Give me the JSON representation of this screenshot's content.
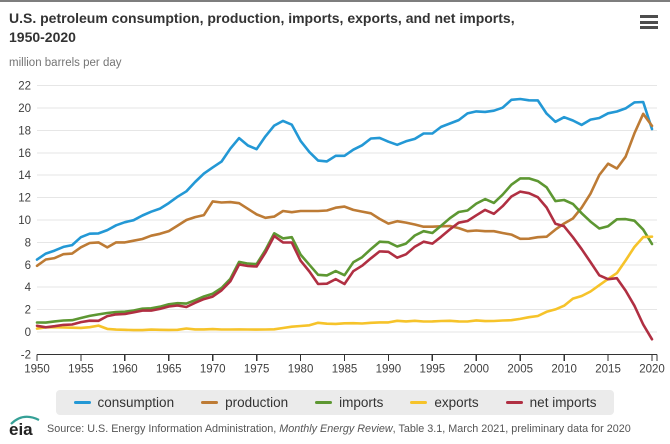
{
  "header": {
    "title": "U.S. petroleum consumption, production, imports, exports, and net imports,\n1950-2020",
    "menu_icon": "hamburger-icon"
  },
  "chart_data": {
    "type": "line",
    "title": "U.S. petroleum consumption, production, imports, exports, and net imports, 1950-2020",
    "units": "million barrels per day",
    "xlabel": "",
    "ylabel": "million barrels per day",
    "x_start": 1950,
    "x_end": 2020,
    "x_step": 1,
    "x_tick_interval": 5,
    "ylim": [
      -2,
      22
    ],
    "y_tick_interval": 2,
    "grid": true,
    "legend_position": "bottom",
    "colors": {
      "grid": "#e6e6e6",
      "axis": "#333333",
      "axis_label": "#404040"
    },
    "series": [
      {
        "name": "consumption",
        "color": "#2398d5",
        "values": [
          6.46,
          7.0,
          7.27,
          7.6,
          7.76,
          8.46,
          8.78,
          8.8,
          9.1,
          9.53,
          9.8,
          9.98,
          10.4,
          10.74,
          11.02,
          11.51,
          12.08,
          12.56,
          13.39,
          14.14,
          14.7,
          15.21,
          16.37,
          17.31,
          16.65,
          16.32,
          17.46,
          18.43,
          18.85,
          18.51,
          17.06,
          16.06,
          15.3,
          15.23,
          15.73,
          15.73,
          16.28,
          16.67,
          17.28,
          17.33,
          16.99,
          16.71,
          17.03,
          17.24,
          17.72,
          17.72,
          18.31,
          18.62,
          18.92,
          19.52,
          19.7,
          19.65,
          19.76,
          20.03,
          20.73,
          20.8,
          20.69,
          20.68,
          19.5,
          18.77,
          19.18,
          18.88,
          18.49,
          18.96,
          19.11,
          19.53,
          19.69,
          19.96,
          20.5,
          20.54,
          18.12
        ]
      },
      {
        "name": "production",
        "color": "#bd7b35",
        "values": [
          5.91,
          6.47,
          6.6,
          6.95,
          7.0,
          7.56,
          7.95,
          8.0,
          7.55,
          8.0,
          8.0,
          8.15,
          8.3,
          8.6,
          8.77,
          9.01,
          9.5,
          10.0,
          10.26,
          10.44,
          11.66,
          11.56,
          11.6,
          11.5,
          11.0,
          10.5,
          10.2,
          10.3,
          10.8,
          10.7,
          10.8,
          10.8,
          10.8,
          10.85,
          11.1,
          11.2,
          10.9,
          10.75,
          10.6,
          10.1,
          9.68,
          9.89,
          9.77,
          9.6,
          9.4,
          9.4,
          9.44,
          9.46,
          9.28,
          9.0,
          9.06,
          9.0,
          9.0,
          8.84,
          8.7,
          8.32,
          8.33,
          8.46,
          8.51,
          9.14,
          9.69,
          10.13,
          11.11,
          12.35,
          14.02,
          15.03,
          14.6,
          15.65,
          17.73,
          19.48,
          18.4
        ]
      },
      {
        "name": "imports",
        "color": "#5d9732",
        "values": [
          0.85,
          0.84,
          0.95,
          1.03,
          1.05,
          1.25,
          1.44,
          1.57,
          1.7,
          1.78,
          1.81,
          1.92,
          2.08,
          2.12,
          2.26,
          2.47,
          2.57,
          2.54,
          2.84,
          3.17,
          3.42,
          3.93,
          4.74,
          6.26,
          6.11,
          6.06,
          7.31,
          8.81,
          8.36,
          8.46,
          6.91,
          6.0,
          5.11,
          5.05,
          5.44,
          5.07,
          6.22,
          6.68,
          7.4,
          8.06,
          8.02,
          7.63,
          7.89,
          8.62,
          9.0,
          8.84,
          9.48,
          10.16,
          10.71,
          10.85,
          11.46,
          11.87,
          11.53,
          12.26,
          13.15,
          13.71,
          13.71,
          13.47,
          12.92,
          11.69,
          11.79,
          11.44,
          10.6,
          9.86,
          9.24,
          9.45,
          10.06,
          10.08,
          9.94,
          9.14,
          7.86
        ]
      },
      {
        "name": "exports",
        "color": "#f6c32a",
        "values": [
          0.3,
          0.42,
          0.43,
          0.4,
          0.38,
          0.37,
          0.43,
          0.57,
          0.28,
          0.21,
          0.2,
          0.17,
          0.17,
          0.21,
          0.2,
          0.19,
          0.2,
          0.31,
          0.23,
          0.23,
          0.26,
          0.22,
          0.22,
          0.23,
          0.22,
          0.21,
          0.22,
          0.24,
          0.36,
          0.47,
          0.54,
          0.6,
          0.82,
          0.74,
          0.72,
          0.78,
          0.79,
          0.76,
          0.82,
          0.86,
          0.86,
          1.0,
          0.95,
          1.0,
          0.94,
          0.95,
          0.98,
          1.0,
          0.95,
          0.94,
          1.04,
          0.97,
          0.98,
          1.03,
          1.05,
          1.17,
          1.32,
          1.43,
          1.8,
          2.02,
          2.35,
          2.98,
          3.21,
          3.62,
          4.18,
          4.74,
          5.26,
          6.38,
          7.59,
          8.47,
          8.51
        ]
      },
      {
        "name": "net imports",
        "color": "#b02f42",
        "values": [
          0.55,
          0.42,
          0.52,
          0.63,
          0.67,
          0.88,
          1.01,
          1.0,
          1.42,
          1.57,
          1.61,
          1.75,
          1.91,
          1.91,
          2.06,
          2.28,
          2.37,
          2.23,
          2.61,
          2.94,
          3.16,
          3.71,
          4.52,
          6.03,
          5.89,
          5.85,
          7.09,
          8.57,
          8.0,
          7.99,
          6.37,
          5.4,
          4.29,
          4.31,
          4.72,
          4.29,
          5.43,
          5.92,
          6.58,
          7.2,
          7.16,
          6.63,
          6.94,
          7.62,
          8.06,
          7.89,
          8.5,
          9.16,
          9.76,
          9.91,
          10.42,
          10.9,
          10.55,
          11.23,
          12.1,
          12.54,
          12.39,
          12.04,
          11.12,
          9.67,
          9.44,
          8.46,
          7.39,
          6.24,
          5.06,
          4.71,
          4.8,
          3.7,
          2.35,
          0.67,
          -0.65
        ]
      }
    ]
  },
  "footer": {
    "logo_text": "eia",
    "source_prefix": "Source: U.S. Energy Information Administration, ",
    "source_italic": "Monthly Energy Review",
    "source_suffix": ", Table 3.1, March 2021, preliminary data for 2020"
  }
}
